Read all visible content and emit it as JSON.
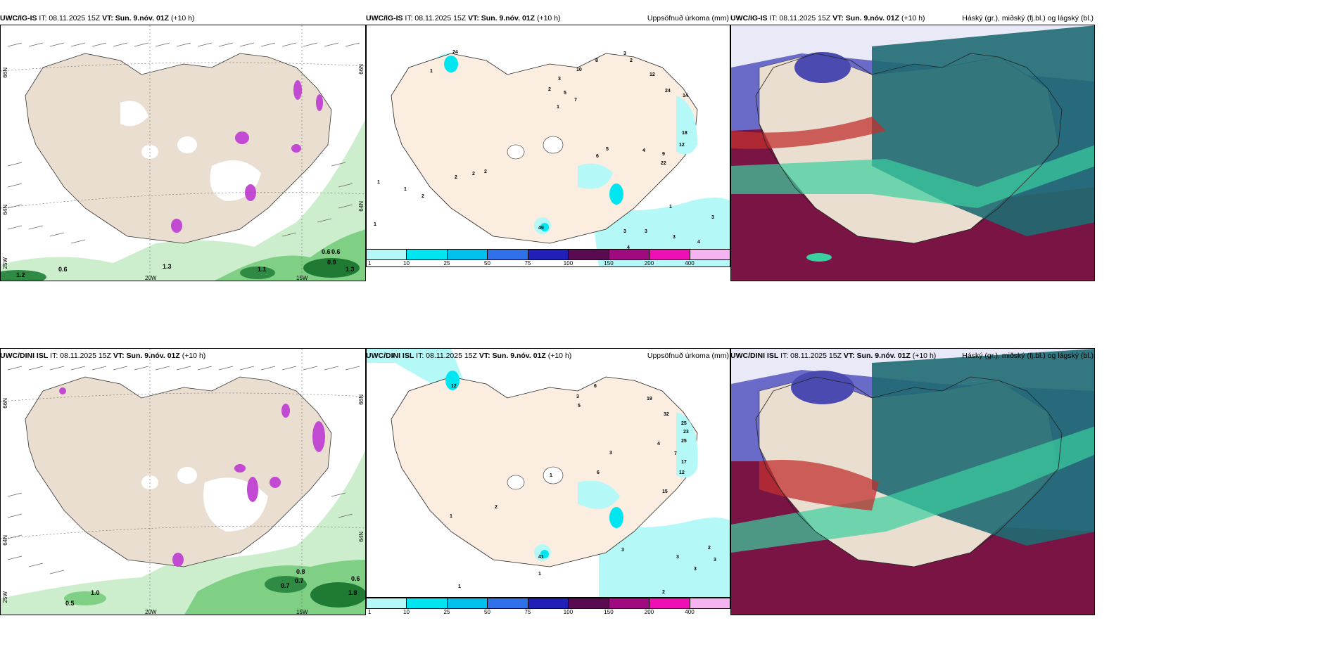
{
  "panels": {
    "p1": {
      "model": "UWC/IG-IS",
      "it": "IT: 08.11.2025 15Z",
      "vt": "VT: Sun. 9.nóv. 01Z",
      "lead": "(+10 h)",
      "title": ""
    },
    "p2": {
      "model": "UWC/IG-IS",
      "it": "IT: 08.11.2025 15Z",
      "vt": "VT: Sun. 9.nóv. 01Z",
      "lead": "(+10 h)",
      "title": "Uppsöfnuð úrkoma (mm)"
    },
    "p3": {
      "model": "UWC/IG-IS",
      "it": "IT: 08.11.2025 15Z",
      "vt": "VT: Sun. 9.nóv. 01Z",
      "lead": "(+10 h)",
      "title": "Háský (gr.), miðský (fj.bl.) og lágský (bl.)"
    },
    "p4": {
      "model": "UWC/DINI ISL",
      "it": "IT: 08.11.2025 15Z",
      "vt": "VT: Sun. 9.nóv. 01Z",
      "lead": "(+10 h)",
      "title": ""
    },
    "p5": {
      "model": "UWC/DINI ISL",
      "it": "IT: 08.11.2025 15Z",
      "vt": "VT: Sun. 9.nóv. 01Z",
      "lead": "(+10 h)",
      "title": "Uppsöfnuð úrkoma (mm)"
    },
    "p6": {
      "model": "UWC/DINI ISL",
      "it": "IT: 08.11.2025 15Z",
      "vt": "VT: Sun. 9.nóv. 01Z",
      "lead": "(+10 h)",
      "title": "Háský (gr.), miðský (fj.bl.) og lágský (bl.)"
    }
  },
  "colorbar": {
    "labels": [
      "1",
      "10",
      "25",
      "50",
      "75",
      "100",
      "150",
      "200",
      "400"
    ],
    "colors": [
      "#b4f8f8",
      "#00e6f0",
      "#00c0ee",
      "#3070e8",
      "#2020b8",
      "#5a0a50",
      "#a00a80",
      "#ee10b4",
      "#f4b4f0"
    ]
  },
  "grid_labels": {
    "lon_20w": "20W",
    "lon_15w": "15W",
    "lat_66n": "66N",
    "lat_64n": "64N",
    "lat_25w": "25W",
    "lat_66n_r": "66N",
    "lat_64n_r": "64N"
  },
  "precip_labels_top": [
    "24",
    "1",
    "10",
    "8",
    "3",
    "2",
    "12",
    "24",
    "14",
    "2",
    "3",
    "5",
    "7",
    "1",
    "6",
    "5",
    "4",
    "9",
    "22",
    "18",
    "12",
    "2",
    "1",
    "2",
    "2",
    "2",
    "1",
    "1",
    "3",
    "3",
    "2",
    "3",
    "4",
    "1",
    "2",
    "49"
  ],
  "precip_labels_bot": [
    "2",
    "12",
    "3",
    "5",
    "6",
    "19",
    "32",
    "25",
    "23",
    "25",
    "17",
    "12",
    "4",
    "7",
    "15",
    "3",
    "6",
    "1",
    "2",
    "1",
    "3",
    "1",
    "3",
    "2",
    "3",
    "3",
    "2",
    "41",
    "1"
  ],
  "wind_values_top": [
    "1.2",
    "0.6",
    "1.3",
    "1.1",
    "0.6",
    "0.6",
    "0.9",
    "1.3"
  ],
  "wind_values_bot": [
    "0.5",
    "1.0",
    "0.8",
    "0.7",
    "0.7",
    "1.8",
    "0.6"
  ],
  "colors": {
    "land": "#f3e6d3",
    "land_dark": "#eaded0",
    "precip_light": "#b4f8f8",
    "precip_mid": "#00e6f0",
    "green1": "#cdeecd",
    "green2": "#7fcf85",
    "green3": "#1f7a34",
    "purple": "#c24ad2",
    "cloud_low": "#6a6ac8",
    "cloud_mid": "#1f6a72",
    "cloud_high": "#3ad0a0",
    "cloud_red": "#7a1444"
  }
}
